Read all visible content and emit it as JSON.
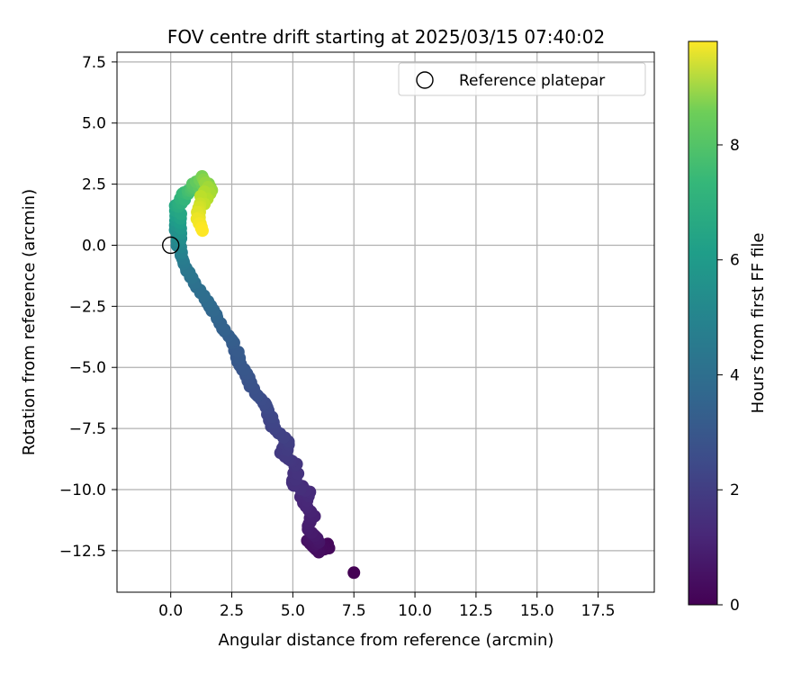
{
  "chart_data": {
    "type": "scatter",
    "title": "FOV centre drift starting at 2025/03/15 07:40:02",
    "xlabel": "Angular distance from reference (arcmin)",
    "ylabel": "Rotation from reference (arcmin)",
    "xlim": [
      -2.2,
      19.8
    ],
    "ylim": [
      -14.2,
      7.9
    ],
    "xticks": [
      "0.0",
      "2.5",
      "5.0",
      "7.5",
      "10.0",
      "12.5",
      "15.0",
      "17.5"
    ],
    "xtick_values": [
      0,
      2.5,
      5,
      7.5,
      10,
      12.5,
      15,
      17.5
    ],
    "yticks": [
      "7.5",
      "5.0",
      "2.5",
      "0.0",
      "−2.5",
      "−5.0",
      "−7.5",
      "−10.0",
      "−12.5"
    ],
    "ytick_values": [
      7.5,
      5,
      2.5,
      0,
      -2.5,
      -5,
      -7.5,
      -10,
      -12.5
    ],
    "grid": true,
    "legend": {
      "placement": "top-right",
      "entries": [
        "Reference platepar"
      ]
    },
    "reference_point": {
      "x": 0.0,
      "y": 0.0
    },
    "colorbar": {
      "label": "Hours from first FF file",
      "range": [
        0,
        9.8
      ],
      "ticks": [
        "0",
        "2",
        "4",
        "6",
        "8"
      ],
      "tick_values": [
        0,
        2,
        4,
        6,
        8
      ],
      "colormap": "viridis"
    },
    "path_points": [
      [
        7.5,
        -13.4,
        0.0
      ],
      [
        6.5,
        -12.3,
        0.2
      ],
      [
        6.0,
        -12.5,
        0.3
      ],
      [
        5.7,
        -12.2,
        0.45
      ],
      [
        6.0,
        -12.0,
        0.6
      ],
      [
        5.6,
        -11.6,
        0.75
      ],
      [
        5.8,
        -11.0,
        0.9
      ],
      [
        5.4,
        -10.5,
        1.05
      ],
      [
        5.6,
        -10.0,
        1.2
      ],
      [
        5.0,
        -9.8,
        1.35
      ],
      [
        5.2,
        -9.0,
        1.5
      ],
      [
        4.6,
        -8.6,
        1.65
      ],
      [
        4.8,
        -8.0,
        1.8
      ],
      [
        4.2,
        -7.5,
        1.95
      ],
      [
        4.0,
        -6.8,
        2.1
      ],
      [
        3.8,
        -6.4,
        2.25
      ],
      [
        3.4,
        -6.0,
        2.4
      ],
      [
        3.1,
        -5.3,
        2.55
      ],
      [
        2.8,
        -4.8,
        2.7
      ],
      [
        2.6,
        -4.0,
        2.85
      ],
      [
        2.2,
        -3.5,
        3.0
      ],
      [
        1.8,
        -2.8,
        3.2
      ],
      [
        1.5,
        -2.3,
        3.4
      ],
      [
        1.0,
        -1.6,
        3.6
      ],
      [
        0.6,
        -0.9,
        3.9
      ],
      [
        0.35,
        -0.2,
        4.3
      ],
      [
        0.3,
        0.4,
        4.8
      ],
      [
        0.3,
        1.0,
        5.4
      ],
      [
        0.3,
        1.6,
        6.0
      ],
      [
        0.6,
        2.1,
        6.6
      ],
      [
        1.0,
        2.4,
        7.2
      ],
      [
        1.4,
        2.7,
        7.8
      ],
      [
        1.6,
        2.3,
        8.4
      ],
      [
        1.2,
        1.7,
        9.0
      ],
      [
        1.1,
        1.1,
        9.5
      ],
      [
        1.3,
        0.6,
        9.8
      ]
    ]
  }
}
